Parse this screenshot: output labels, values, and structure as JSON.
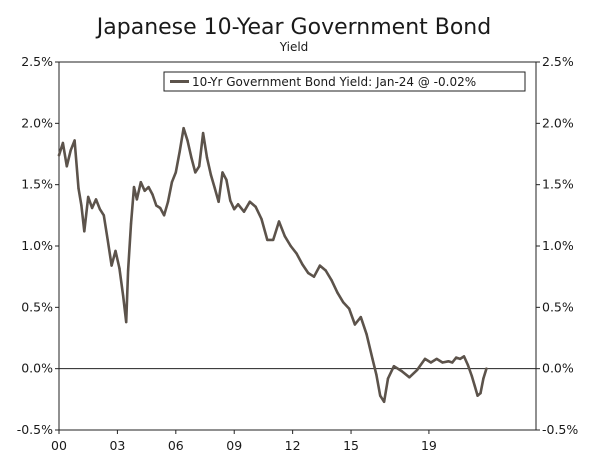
{
  "chart_data": {
    "type": "line",
    "title": "Japanese 10-Year Government Bond",
    "subtitle": "Yield",
    "xlabel": "",
    "ylabel": "",
    "x_tick_labels": [
      "00",
      "03",
      "06",
      "09",
      "12",
      "15",
      "19"
    ],
    "x_tick_years": [
      2000,
      2003,
      2006,
      2009,
      2012,
      2015,
      2019
    ],
    "xlim": [
      2000,
      2024.5
    ],
    "y_tick_labels": [
      "2.5%",
      "2.0%",
      "1.5%",
      "1.0%",
      "0.5%",
      "0.0%",
      "-0.5%"
    ],
    "y_tick_values": [
      2.5,
      2.0,
      1.5,
      1.0,
      0.5,
      0.0,
      -0.5
    ],
    "ylim": [
      -0.5,
      2.5
    ],
    "legend": {
      "label": "10-Yr Government Bond Yield: Jan-24 @ -0.02%",
      "placement": "top-right"
    },
    "line_color": "#5c534b",
    "grid": false,
    "series": [
      {
        "name": "10-Yr Government Bond Yield: Jan-24 @ -0.02%",
        "x": [
          2000.0,
          2000.2,
          2000.4,
          2000.6,
          2000.8,
          2001.0,
          2001.15,
          2001.3,
          2001.5,
          2001.7,
          2001.9,
          2002.1,
          2002.3,
          2002.5,
          2002.7,
          2002.9,
          2003.1,
          2003.3,
          2003.45,
          2003.55,
          2003.7,
          2003.85,
          2004.0,
          2004.2,
          2004.4,
          2004.6,
          2004.8,
          2005.0,
          2005.2,
          2005.4,
          2005.6,
          2005.8,
          2006.0,
          2006.2,
          2006.4,
          2006.6,
          2006.8,
          2007.0,
          2007.2,
          2007.4,
          2007.6,
          2007.8,
          2008.0,
          2008.2,
          2008.4,
          2008.6,
          2008.8,
          2009.0,
          2009.2,
          2009.5,
          2009.8,
          2010.1,
          2010.4,
          2010.7,
          2011.0,
          2011.3,
          2011.6,
          2011.9,
          2012.2,
          2012.5,
          2012.8,
          2013.1,
          2013.4,
          2013.7,
          2014.0,
          2014.3,
          2014.6,
          2014.9,
          2015.2,
          2015.5,
          2015.8,
          2016.1,
          2016.3,
          2016.5,
          2016.7,
          2016.9,
          2017.2,
          2017.6,
          2018.0,
          2018.4,
          2018.8,
          2019.1,
          2019.4,
          2019.7,
          2020.0,
          2020.2,
          2020.4,
          2020.6,
          2020.8,
          2021.0,
          2021.2,
          2021.35,
          2021.5,
          2021.65,
          2021.8,
          2021.95
        ],
        "values": [
          1.74,
          1.84,
          1.65,
          1.78,
          1.86,
          1.47,
          1.33,
          1.12,
          1.4,
          1.31,
          1.38,
          1.3,
          1.25,
          1.05,
          0.84,
          0.96,
          0.82,
          0.59,
          0.38,
          0.8,
          1.18,
          1.48,
          1.38,
          1.52,
          1.45,
          1.48,
          1.42,
          1.33,
          1.31,
          1.25,
          1.36,
          1.52,
          1.6,
          1.77,
          1.96,
          1.86,
          1.72,
          1.6,
          1.65,
          1.92,
          1.72,
          1.58,
          1.47,
          1.36,
          1.6,
          1.54,
          1.37,
          1.3,
          1.34,
          1.28,
          1.36,
          1.32,
          1.22,
          1.05,
          1.05,
          1.2,
          1.08,
          1.0,
          0.94,
          0.85,
          0.78,
          0.75,
          0.84,
          0.8,
          0.72,
          0.62,
          0.54,
          0.49,
          0.36,
          0.42,
          0.28,
          0.08,
          -0.05,
          -0.22,
          -0.27,
          -0.08,
          0.02,
          -0.02,
          -0.07,
          -0.01,
          0.08,
          0.05,
          0.08,
          0.05,
          0.06,
          0.05,
          0.09,
          0.08,
          0.1,
          0.03,
          -0.06,
          -0.14,
          -0.22,
          -0.2,
          -0.08,
          0.0
        ]
      }
    ]
  }
}
